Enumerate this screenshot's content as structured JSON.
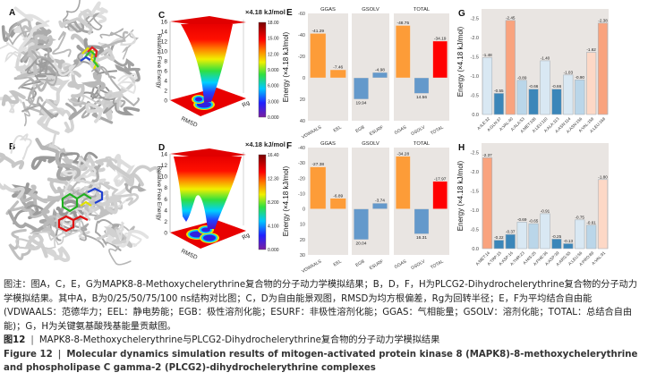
{
  "panels": {
    "A": "A",
    "B": "B",
    "C": "C",
    "D": "D",
    "E": "E",
    "F": "F",
    "G": "G",
    "H": "H"
  },
  "landscapes": [
    {
      "unit": "×4.18 kJ/mol",
      "zlabel": "Relative Free Energy",
      "xlabel": "RMSD",
      "ylabel": "Rg",
      "zticks": [
        "0",
        "2",
        "4",
        "6",
        "8",
        "10",
        "12",
        "14",
        "16"
      ],
      "colorbar_ticks": [
        "18.00",
        "15.00",
        "12.00",
        "9.000",
        "6.000",
        "3.000",
        "0.000"
      ]
    },
    {
      "unit": "×4.18 kJ/mol",
      "zlabel": "Relative Free Energy",
      "xlabel": "RMSD",
      "ylabel": "Rg",
      "zticks": [
        "0",
        "2",
        "4",
        "6",
        "8",
        "10",
        "12",
        "14"
      ],
      "colorbar_ticks": [
        "16.40",
        "12.30",
        "8.200",
        "4.100",
        "0.000"
      ]
    }
  ],
  "colors": {
    "orange": "#fd9c38",
    "blue": "#6499cb",
    "red": "#ff0000",
    "panel_bg": "#e9e5e2",
    "dark_blue": "#3b86b9",
    "mid_blue": "#bad6e9",
    "light_blue": "#d9e8f3",
    "salmon": "#f9a37e",
    "peach": "#fdd8c6"
  },
  "chart_data": [
    {
      "panel": "E",
      "type": "bar",
      "ylabel": "Energy (×4.18 kJ/mol)",
      "ylim": [
        -60,
        40
      ],
      "y_inverted": true,
      "yticks": [
        "-60",
        "-40",
        "-20",
        "0",
        "20",
        "40"
      ],
      "facets": [
        {
          "title": "GGAS",
          "categories": [
            "VDWAALS",
            "EEL"
          ],
          "values": [
            -41.29,
            -7.46
          ],
          "labels": [
            "-41.29",
            "-7.46"
          ],
          "color": "orange"
        },
        {
          "title": "GSOLV",
          "categories": [
            "EGB",
            "ESURF"
          ],
          "values": [
            19.94,
            -4.98
          ],
          "labels": [
            "19.94",
            "-4.98"
          ],
          "color": "blue"
        },
        {
          "title": "TOTAL",
          "categories": [
            "GGAS",
            "GSOLV",
            "TOTAL"
          ],
          "values": [
            -48.75,
            14.56,
            -34.19
          ],
          "labels": [
            "-48.75",
            "14.56",
            "-34.19"
          ],
          "colors": [
            "orange",
            "blue",
            "red"
          ]
        }
      ]
    },
    {
      "panel": "F",
      "type": "bar",
      "ylabel": "Energy (×4.18 kJ/mol)",
      "ylim": [
        -40,
        30
      ],
      "y_inverted": true,
      "yticks": [
        "-40",
        "-30",
        "-20",
        "-10",
        "0",
        "10",
        "20",
        "30"
      ],
      "facets": [
        {
          "title": "GGAS",
          "categories": [
            "VDWAALS",
            "EEL"
          ],
          "values": [
            -27.38,
            -6.89
          ],
          "labels": [
            "-27.38",
            "-6.89"
          ],
          "color": "orange"
        },
        {
          "title": "GSOLV",
          "categories": [
            "EGB",
            "ESURF"
          ],
          "values": [
            20.04,
            -3.74
          ],
          "labels": [
            "20.04",
            "-3.74"
          ],
          "color": "blue"
        },
        {
          "title": "TOTAL",
          "categories": [
            "GGAS",
            "GSOLV",
            "TOTAL"
          ],
          "values": [
            -34.28,
            16.31,
            -17.97
          ],
          "labels": [
            "-34.28",
            "16.31",
            "-17.97"
          ],
          "colors": [
            "orange",
            "blue",
            "red"
          ]
        }
      ]
    },
    {
      "panel": "G",
      "type": "bar",
      "ylabel": "Energy (×4.18 kJ/mol)",
      "ylim": [
        0,
        -2.75
      ],
      "yticks": [
        "0.0",
        "-0.5",
        "-1.0",
        "-1.5",
        "-2.0",
        "-2.5"
      ],
      "categories": [
        "A:ILE:32",
        "A:GLN:37",
        "A:VAL:40",
        "A:ALA:53",
        "A:MET:108",
        "A:LEU:110",
        "A:ALA:113",
        "A:ASN:114",
        "A:ASN:156",
        "A:VAL:158",
        "A:LEU:168"
      ],
      "values": [
        -1.48,
        -0.55,
        -2.45,
        -0.89,
        -0.66,
        -1.4,
        -0.66,
        -1.03,
        -0.9,
        -1.62,
        -2.38
      ],
      "labels": [
        "-1.48",
        "-0.55",
        "-2.45",
        "-0.89",
        "-0.66",
        "-1.40",
        "-0.66",
        "-1.03",
        "-0.90",
        "-1.62",
        "-2.38"
      ],
      "bar_colors": [
        "light_blue",
        "dark_blue",
        "salmon",
        "mid_blue",
        "dark_blue",
        "light_blue",
        "dark_blue",
        "light_blue",
        "mid_blue",
        "peach",
        "salmon"
      ]
    },
    {
      "panel": "H",
      "type": "bar",
      "ylabel": "Energy (×4.18 kJ/mol)",
      "ylim": [
        0,
        -2.75
      ],
      "yticks": [
        "0.0",
        "-0.5",
        "-1.0",
        "-1.5",
        "-2.0",
        "-2.5"
      ],
      "categories": [
        "A:MET:14",
        "A:TRP:15",
        "A:ASP:16",
        "A:THR:23",
        "A:HIS:25",
        "A:PHE:36",
        "A:ASP:39",
        "A:ARG:55",
        "A:LEU:56",
        "A:PRO:89",
        "A:VAL:91"
      ],
      "values": [
        -2.37,
        -0.22,
        -0.37,
        -0.69,
        -0.65,
        -0.91,
        -0.25,
        -0.13,
        -0.75,
        -0.61,
        -1.8
      ],
      "labels": [
        "-2.37",
        "-0.22",
        "-0.37",
        "-0.69",
        "-0.65",
        "-0.91",
        "-0.25",
        "-0.13",
        "-0.75",
        "-0.61",
        "-1.80"
      ],
      "bar_colors": [
        "salmon",
        "dark_blue",
        "dark_blue",
        "light_blue",
        "mid_blue",
        "light_blue",
        "dark_blue",
        "dark_blue",
        "light_blue",
        "mid_blue",
        "peach"
      ]
    }
  ],
  "caption": {
    "note": "图注：图A，C，E，G为MAPK8-8-Methoxychelerythrine复合物的分子动力学模拟结果；B，D，F，H为PLCG2-Dihydrochelerythrine复合物的分子动力学模拟结果。其中A，B为0/25/50/75/100 ns结构对比图；C，D为自由能景观图，RMSD为均方根偏差，Rg为回转半径；E，F为平均结合自由能(VDWAALS：范德华力；EEL：静电势能；EGB：极性溶剂化能；ESURF：非极性溶剂化能；GGAS：气相能量；GSOLV：溶剂化能；TOTAL：总结合自由能)；G，H为关键氨基酸残基能量贡献图。",
    "zh_label": "图12",
    "zh_title": "MAPK8-8-Methoxychelerythrine与PLCG2-Dihydrochelerythrine复合物的分子动力学模拟结果",
    "en_label": "Figure 12",
    "en_title": "Molecular dynamics simulation results of mitogen-activated protein kinase 8 (MAPK8)-8-methoxychelerythrine and phospholipase C gamma-2 (PLCG2)-dihydrochelerythrine complexes"
  }
}
